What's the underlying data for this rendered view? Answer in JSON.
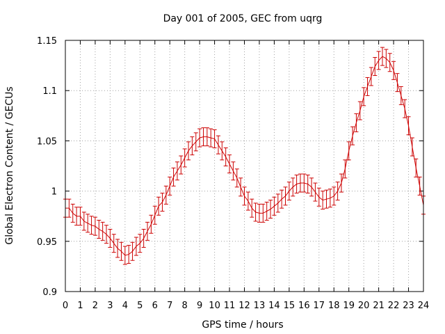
{
  "chart_data": {
    "type": "line",
    "title": "Day 001 of 2005, GEC from uqrg",
    "xlabel": "GPS time / hours",
    "ylabel": "Global Electron Content / GECUs",
    "xlim": [
      0,
      24
    ],
    "ylim": [
      0.9,
      1.15
    ],
    "grid": true,
    "xticks": [
      0,
      1,
      2,
      3,
      4,
      5,
      6,
      7,
      8,
      9,
      10,
      11,
      12,
      13,
      14,
      15,
      16,
      17,
      18,
      19,
      20,
      21,
      22,
      23,
      24
    ],
    "yticks": [
      0.9,
      0.95,
      1.0,
      1.05,
      1.1,
      1.15
    ],
    "ytick_labels": [
      "0.9",
      "0.95",
      "1",
      "1.05",
      "1.1",
      "1.15"
    ],
    "error": 0.009,
    "series_color": "#cc0000",
    "series": [
      {
        "name": "GEC",
        "x": [
          0,
          0.25,
          0.5,
          0.75,
          1,
          1.25,
          1.5,
          1.75,
          2,
          2.25,
          2.5,
          2.75,
          3,
          3.25,
          3.5,
          3.75,
          4,
          4.25,
          4.5,
          4.75,
          5,
          5.25,
          5.5,
          5.75,
          6,
          6.25,
          6.5,
          6.75,
          7,
          7.25,
          7.5,
          7.75,
          8,
          8.25,
          8.5,
          8.75,
          9,
          9.25,
          9.5,
          9.75,
          10,
          10.25,
          10.5,
          10.75,
          11,
          11.25,
          11.5,
          11.75,
          12,
          12.25,
          12.5,
          12.75,
          13,
          13.25,
          13.5,
          13.75,
          14,
          14.25,
          14.5,
          14.75,
          15,
          15.25,
          15.5,
          15.75,
          16,
          16.25,
          16.5,
          16.75,
          17,
          17.25,
          17.5,
          17.75,
          18,
          18.25,
          18.5,
          18.75,
          19,
          19.25,
          19.5,
          19.75,
          20,
          20.25,
          20.5,
          20.75,
          21,
          21.25,
          21.5,
          21.75,
          22,
          22.25,
          22.5,
          22.75,
          23,
          23.25,
          23.5,
          23.75,
          24
        ],
        "values": [
          0.983,
          0.983,
          0.978,
          0.975,
          0.975,
          0.97,
          0.968,
          0.966,
          0.965,
          0.962,
          0.96,
          0.957,
          0.953,
          0.948,
          0.943,
          0.94,
          0.936,
          0.937,
          0.94,
          0.945,
          0.948,
          0.953,
          0.96,
          0.967,
          0.976,
          0.985,
          0.989,
          0.996,
          1.005,
          1.014,
          1.02,
          1.026,
          1.033,
          1.04,
          1.045,
          1.049,
          1.053,
          1.054,
          1.054,
          1.053,
          1.052,
          1.046,
          1.04,
          1.034,
          1.027,
          1.02,
          1.013,
          1.004,
          0.995,
          0.99,
          0.983,
          0.979,
          0.978,
          0.978,
          0.98,
          0.982,
          0.985,
          0.988,
          0.992,
          0.995,
          1.0,
          1.004,
          1.007,
          1.008,
          1.008,
          1.007,
          1.004,
          0.999,
          0.994,
          0.991,
          0.992,
          0.993,
          0.995,
          1.0,
          1.008,
          1.022,
          1.04,
          1.055,
          1.068,
          1.08,
          1.094,
          1.104,
          1.114,
          1.124,
          1.13,
          1.134,
          1.132,
          1.128,
          1.12,
          1.108,
          1.095,
          1.082,
          1.065,
          1.044,
          1.023,
          1.005,
          0.986
        ]
      }
    ]
  }
}
